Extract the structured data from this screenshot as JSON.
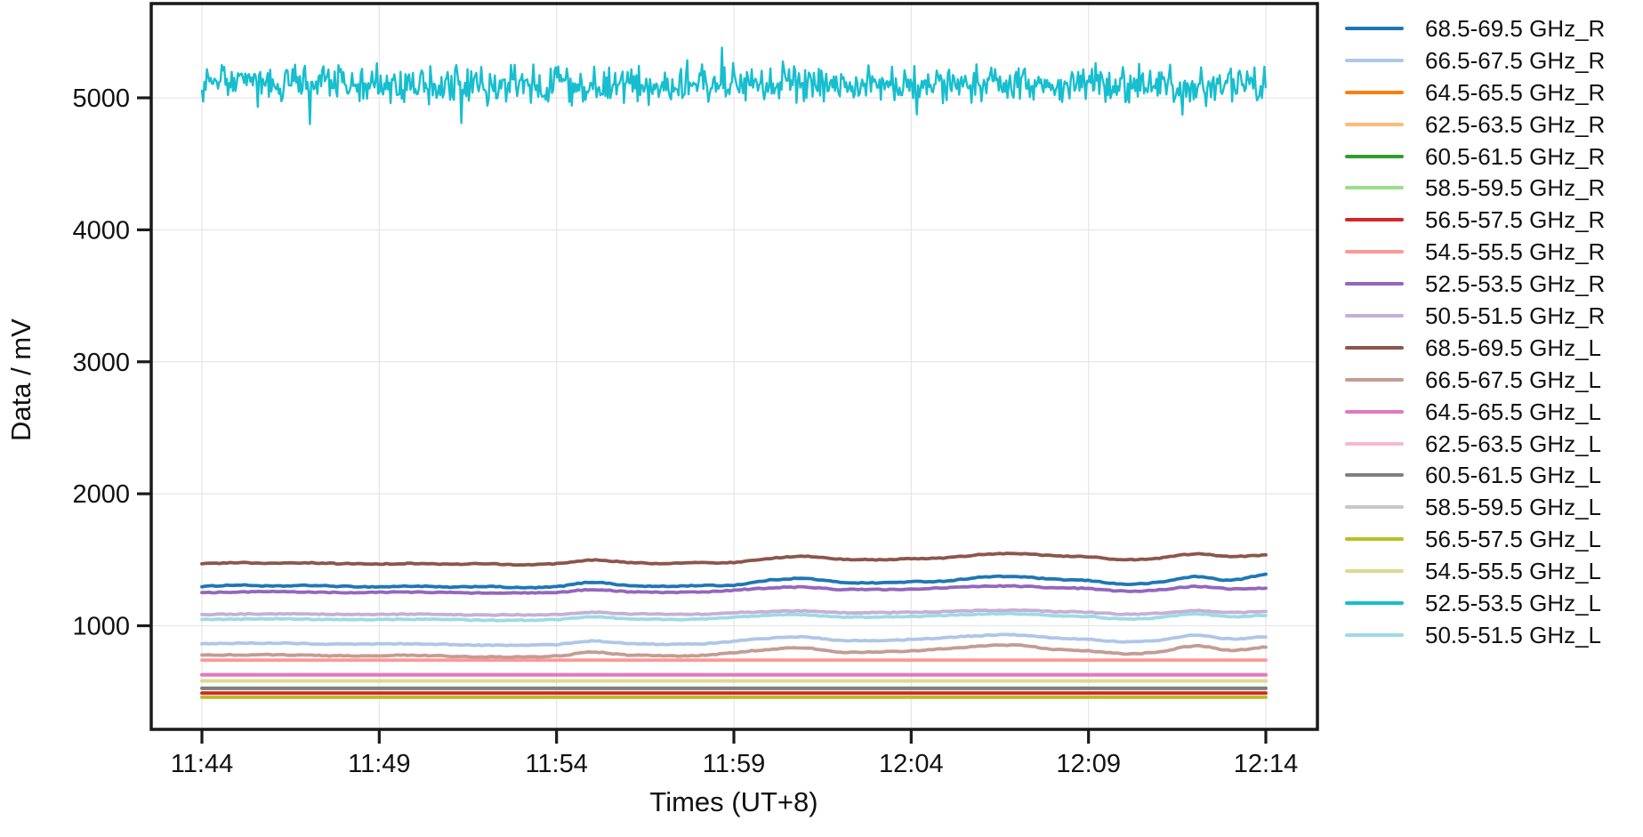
{
  "figure": {
    "background": "#ffffff",
    "text_color": "#111111",
    "grid_color": "#e7e7e7",
    "spine_color": "#1a1a1a"
  },
  "chart_data": {
    "type": "line",
    "title": "",
    "xlabel": "Times (UT+8)",
    "ylabel": "Data / mV",
    "grid": true,
    "legend_position": "right-outside",
    "x_tick_labels": [
      "11:44",
      "11:49",
      "11:54",
      "11:59",
      "12:04",
      "12:09",
      "12:14"
    ],
    "x_tick_minutes": [
      0,
      5,
      10,
      15,
      20,
      25,
      30
    ],
    "time_range": [
      "11:44",
      "12:14"
    ],
    "timezone_label": "UT+8",
    "y_ticks": [
      1000,
      2000,
      3000,
      4000,
      5000
    ],
    "ylim": [
      215,
      5715
    ],
    "xlim_minutes": [
      -1.45,
      31.45
    ],
    "series": [
      {
        "name": "68.5-69.5 GHz_R",
        "color": "#1f77b4",
        "pattern": "wiggly",
        "approx_mean_mV": 1325,
        "keypoints_min_mV": [
          [
            0,
            1298
          ],
          [
            1,
            1308
          ],
          [
            2,
            1300
          ],
          [
            3,
            1305
          ],
          [
            4,
            1298
          ],
          [
            5,
            1295
          ],
          [
            6,
            1300
          ],
          [
            7,
            1292
          ],
          [
            8,
            1298
          ],
          [
            9,
            1288
          ],
          [
            10,
            1296
          ],
          [
            11,
            1330
          ],
          [
            12,
            1305
          ],
          [
            13,
            1298
          ],
          [
            14,
            1305
          ],
          [
            15,
            1308
          ],
          [
            16,
            1345
          ],
          [
            17,
            1358
          ],
          [
            18,
            1330
          ],
          [
            19,
            1325
          ],
          [
            20,
            1333
          ],
          [
            21,
            1340
          ],
          [
            22,
            1368
          ],
          [
            23,
            1372
          ],
          [
            24,
            1352
          ],
          [
            25,
            1342
          ],
          [
            26,
            1315
          ],
          [
            27,
            1330
          ],
          [
            28,
            1372
          ],
          [
            29,
            1345
          ],
          [
            30,
            1388
          ]
        ]
      },
      {
        "name": "66.5-67.5 GHz_R",
        "color": "#aec7e8",
        "pattern": "wiggly",
        "approx_mean_mV": 890,
        "keypoints_min_mV": [
          [
            0,
            865
          ],
          [
            2,
            868
          ],
          [
            4,
            860
          ],
          [
            6,
            863
          ],
          [
            8,
            852
          ],
          [
            10,
            858
          ],
          [
            11,
            885
          ],
          [
            12,
            865
          ],
          [
            14,
            862
          ],
          [
            16,
            905
          ],
          [
            17,
            915
          ],
          [
            18,
            888
          ],
          [
            20,
            895
          ],
          [
            22,
            925
          ],
          [
            23,
            930
          ],
          [
            24,
            908
          ],
          [
            25,
            898
          ],
          [
            26,
            878
          ],
          [
            27,
            890
          ],
          [
            28,
            930
          ],
          [
            29,
            900
          ],
          [
            30,
            918
          ]
        ]
      },
      {
        "name": "64.5-65.5 GHz_R",
        "color": "#ff7f0e",
        "pattern": "flat",
        "value_mV": 628,
        "approx_mean_mV": 628,
        "fully_covered_by": "64.5-65.5 GHz_L"
      },
      {
        "name": "62.5-63.5 GHz_R",
        "color": "#ffbb78",
        "pattern": "flat",
        "value_mV": 582,
        "approx_mean_mV": 582,
        "fully_covered_by": "54.5-55.5 GHz_L"
      },
      {
        "name": "60.5-61.5 GHz_R",
        "color": "#2ca02c",
        "pattern": "flat",
        "value_mV": 526,
        "approx_mean_mV": 526,
        "fully_covered_by": "60.5-61.5 GHz_L"
      },
      {
        "name": "58.5-59.5 GHz_R",
        "color": "#98df8a",
        "pattern": "flat",
        "value_mV": 490,
        "approx_mean_mV": 490,
        "fully_covered_by": "56.5-57.5 GHz_R"
      },
      {
        "name": "56.5-57.5 GHz_R",
        "color": "#d62728",
        "pattern": "flat",
        "value_mV": 490,
        "approx_mean_mV": 490
      },
      {
        "name": "54.5-55.5 GHz_R",
        "color": "#ff9896",
        "pattern": "flat",
        "value_mV": 740,
        "approx_mean_mV": 740
      },
      {
        "name": "52.5-53.5 GHz_R",
        "color": "#9467bd",
        "pattern": "wiggly",
        "approx_mean_mV": 1270,
        "keypoints_min_mV": [
          [
            0,
            1252
          ],
          [
            2,
            1258
          ],
          [
            4,
            1252
          ],
          [
            6,
            1255
          ],
          [
            8,
            1248
          ],
          [
            10,
            1252
          ],
          [
            11,
            1275
          ],
          [
            12,
            1258
          ],
          [
            14,
            1255
          ],
          [
            16,
            1285
          ],
          [
            17,
            1292
          ],
          [
            18,
            1275
          ],
          [
            20,
            1278
          ],
          [
            22,
            1298
          ],
          [
            23,
            1300
          ],
          [
            24,
            1288
          ],
          [
            25,
            1282
          ],
          [
            26,
            1262
          ],
          [
            27,
            1272
          ],
          [
            28,
            1298
          ],
          [
            29,
            1280
          ],
          [
            30,
            1285
          ]
        ]
      },
      {
        "name": "50.5-51.5 GHz_R",
        "color": "#c5b0d5",
        "pattern": "wiggly",
        "approx_mean_mV": 1097,
        "keypoints_min_mV": [
          [
            0,
            1085
          ],
          [
            2,
            1090
          ],
          [
            4,
            1086
          ],
          [
            6,
            1088
          ],
          [
            8,
            1082
          ],
          [
            10,
            1086
          ],
          [
            11,
            1102
          ],
          [
            12,
            1090
          ],
          [
            14,
            1088
          ],
          [
            16,
            1108
          ],
          [
            17,
            1112
          ],
          [
            18,
            1100
          ],
          [
            20,
            1102
          ],
          [
            22,
            1115
          ],
          [
            23,
            1118
          ],
          [
            24,
            1108
          ],
          [
            25,
            1102
          ],
          [
            26,
            1088
          ],
          [
            27,
            1095
          ],
          [
            28,
            1115
          ],
          [
            29,
            1100
          ],
          [
            30,
            1108
          ]
        ]
      },
      {
        "name": "68.5-69.5 GHz_L",
        "color": "#8c564b",
        "pattern": "wiggly",
        "approx_mean_mV": 1500,
        "keypoints_min_mV": [
          [
            0,
            1470
          ],
          [
            1,
            1478
          ],
          [
            2,
            1472
          ],
          [
            3,
            1476
          ],
          [
            4,
            1470
          ],
          [
            5,
            1468
          ],
          [
            6,
            1472
          ],
          [
            7,
            1466
          ],
          [
            8,
            1470
          ],
          [
            9,
            1462
          ],
          [
            10,
            1470
          ],
          [
            11,
            1498
          ],
          [
            12,
            1480
          ],
          [
            13,
            1472
          ],
          [
            14,
            1478
          ],
          [
            15,
            1480
          ],
          [
            16,
            1510
          ],
          [
            17,
            1525
          ],
          [
            18,
            1505
          ],
          [
            19,
            1500
          ],
          [
            20,
            1508
          ],
          [
            21,
            1515
          ],
          [
            22,
            1540
          ],
          [
            23,
            1548
          ],
          [
            24,
            1530
          ],
          [
            25,
            1522
          ],
          [
            26,
            1500
          ],
          [
            27,
            1512
          ],
          [
            28,
            1545
          ],
          [
            29,
            1525
          ],
          [
            30,
            1535
          ]
        ]
      },
      {
        "name": "66.5-67.5 GHz_L",
        "color": "#c49c94",
        "pattern": "wiggly",
        "approx_mean_mV": 805,
        "keypoints_min_mV": [
          [
            0,
            778
          ],
          [
            2,
            780
          ],
          [
            4,
            772
          ],
          [
            6,
            776
          ],
          [
            8,
            763
          ],
          [
            10,
            770
          ],
          [
            11,
            800
          ],
          [
            12,
            778
          ],
          [
            14,
            775
          ],
          [
            16,
            820
          ],
          [
            17,
            832
          ],
          [
            18,
            800
          ],
          [
            20,
            810
          ],
          [
            22,
            845
          ],
          [
            23,
            852
          ],
          [
            24,
            822
          ],
          [
            25,
            810
          ],
          [
            26,
            788
          ],
          [
            27,
            802
          ],
          [
            28,
            848
          ],
          [
            29,
            815
          ],
          [
            30,
            838
          ]
        ]
      },
      {
        "name": "64.5-65.5 GHz_L",
        "color": "#e377c2",
        "pattern": "flat",
        "value_mV": 628,
        "approx_mean_mV": 628
      },
      {
        "name": "62.5-63.5 GHz_L",
        "color": "#f7b6d2",
        "pattern": "flat",
        "value_mV": 582,
        "approx_mean_mV": 582,
        "fully_covered_by": "54.5-55.5 GHz_L"
      },
      {
        "name": "60.5-61.5 GHz_L",
        "color": "#7f7f7f",
        "pattern": "flat",
        "value_mV": 526,
        "approx_mean_mV": 526
      },
      {
        "name": "58.5-59.5 GHz_L",
        "color": "#c7c7c7",
        "pattern": "flat",
        "value_mV": 458,
        "approx_mean_mV": 458,
        "fully_covered_by": "56.5-57.5 GHz_L"
      },
      {
        "name": "56.5-57.5 GHz_L",
        "color": "#bcbd22",
        "pattern": "flat",
        "value_mV": 458,
        "approx_mean_mV": 458
      },
      {
        "name": "54.5-55.5 GHz_L",
        "color": "#dbdb8d",
        "pattern": "flat",
        "value_mV": 582,
        "approx_mean_mV": 582
      },
      {
        "name": "52.5-53.5 GHz_L",
        "color": "#17becf",
        "pattern": "noisy",
        "approx_mean_mV": 5100,
        "mean_mV": 5100,
        "noise_halfband_mV": 170,
        "min_mV": 4745,
        "max_mV": 5470
      },
      {
        "name": "50.5-51.5 GHz_L",
        "color": "#9edae5",
        "pattern": "wiggly",
        "approx_mean_mV": 1062,
        "keypoints_min_mV": [
          [
            0,
            1048
          ],
          [
            2,
            1052
          ],
          [
            4,
            1046
          ],
          [
            6,
            1050
          ],
          [
            8,
            1042
          ],
          [
            10,
            1046
          ],
          [
            11,
            1068
          ],
          [
            12,
            1052
          ],
          [
            14,
            1050
          ],
          [
            16,
            1078
          ],
          [
            17,
            1082
          ],
          [
            18,
            1066
          ],
          [
            20,
            1070
          ],
          [
            22,
            1088
          ],
          [
            23,
            1090
          ],
          [
            24,
            1076
          ],
          [
            25,
            1070
          ],
          [
            26,
            1050
          ],
          [
            27,
            1062
          ],
          [
            28,
            1090
          ],
          [
            29,
            1068
          ],
          [
            30,
            1080
          ]
        ]
      }
    ]
  }
}
